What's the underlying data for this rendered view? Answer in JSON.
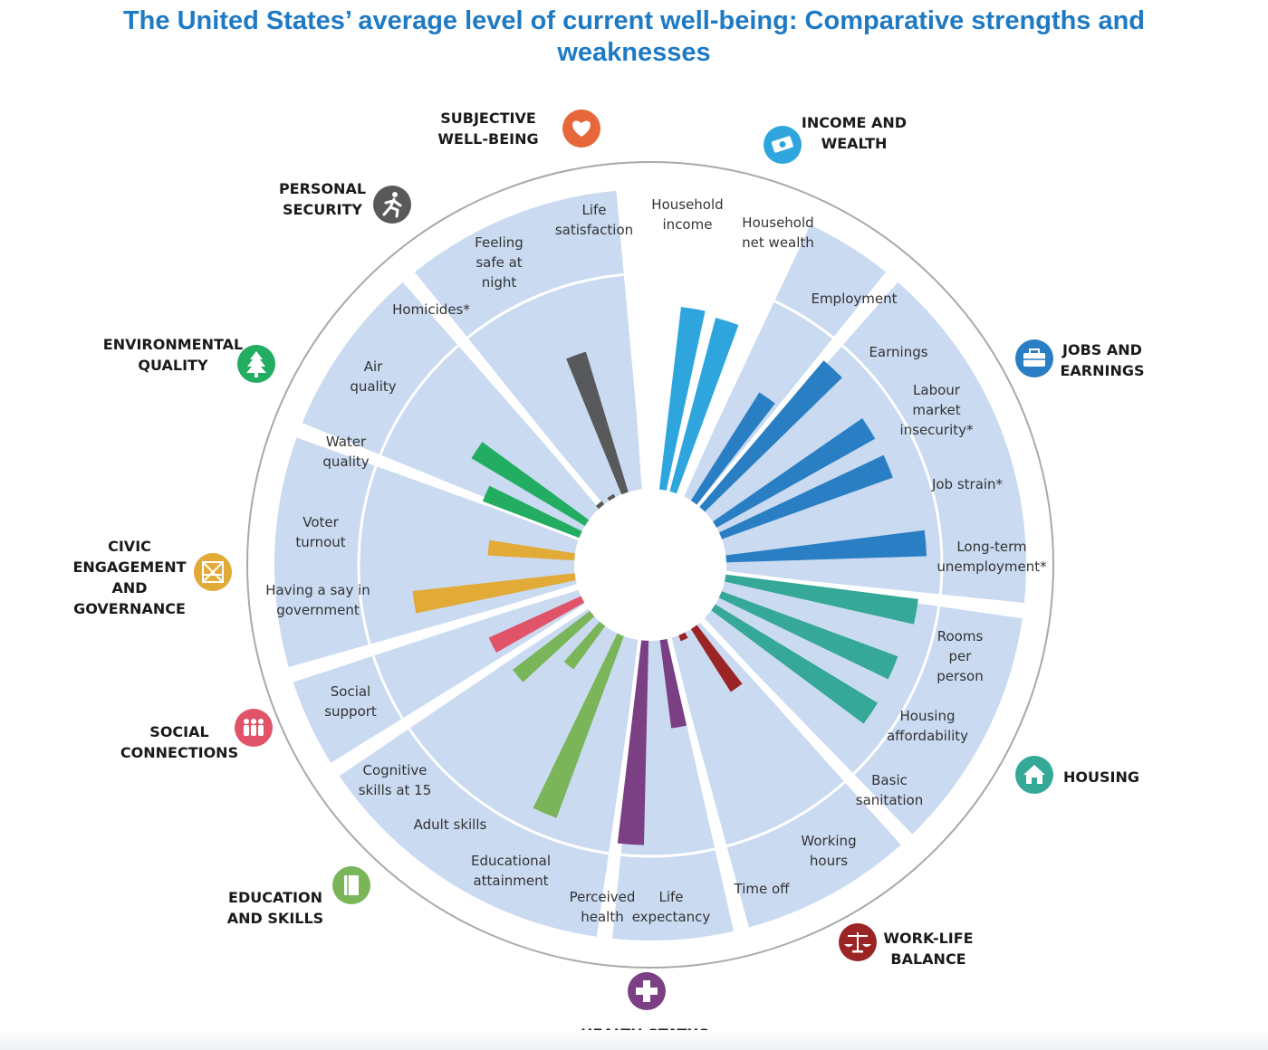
{
  "title_line1": "The United States’ average level of current well-being: Comparative strengths and",
  "title_line2": "weaknesses",
  "chart_data": {
    "type": "radial-bar",
    "title": "The United States’ average level of current well-being: Comparative strengths and weaknesses",
    "value_scale": [
      0,
      10
    ],
    "dimensions": [
      {
        "name": "SUBJECTIVE WELL-BEING",
        "lines": [
          "SUBJECTIVE",
          "WELL-BEING"
        ],
        "color": "#58595b",
        "icon": "heart-icon",
        "icon_color": "#e8673a",
        "indicators": [
          {
            "label": [
              "Life",
              "satisfaction"
            ],
            "value": 7.1
          }
        ]
      },
      {
        "name": "INCOME AND WEALTH",
        "lines": [
          "INCOME AND",
          "WEALTH"
        ],
        "color": "#2ea6dd",
        "icon": "money-icon",
        "icon_color": "#2ea6dd",
        "indicators": [
          {
            "label": [
              "Household",
              "income"
            ],
            "value": 8.9
          },
          {
            "label": [
              "Household",
              "net wealth"
            ],
            "value": 8.7
          }
        ]
      },
      {
        "name": "JOBS AND EARNINGS",
        "lines": [
          "JOBS AND",
          "EARNINGS"
        ],
        "color": "#2a7fc4",
        "icon": "briefcase-icon",
        "icon_color": "#2a7fc4",
        "indicators": [
          {
            "label": [
              "Employment"
            ],
            "value": 6.2
          },
          {
            "label": [
              "Earnings"
            ],
            "value": 9.3
          },
          {
            "label": [
              "Labour",
              "market",
              "insecurity*"
            ],
            "value": 8.8
          },
          {
            "label": [
              "Job strain*"
            ],
            "value": 8.8
          },
          {
            "label": [
              "Long-term",
              "unemployment*"
            ],
            "value": 9.7
          }
        ]
      },
      {
        "name": "HOUSING",
        "lines": [
          "HOUSING"
        ],
        "color": "#35a897",
        "icon": "house-icon",
        "icon_color": "#35a897",
        "indicators": [
          {
            "label": [
              "Rooms",
              "per",
              "person"
            ],
            "value": 9.4
          },
          {
            "label": [
              "Housing",
              "affordability"
            ],
            "value": 9.1
          },
          {
            "label": [
              "Basic",
              "sanitation"
            ],
            "value": 9.2
          }
        ]
      },
      {
        "name": "WORK-LIFE BALANCE",
        "lines": [
          "WORK-LIFE",
          "BALANCE"
        ],
        "color": "#9b2525",
        "icon": "scales-icon",
        "icon_color": "#9b2525",
        "indicators": [
          {
            "label": [
              "Working",
              "hours"
            ],
            "value": 3.6
          },
          {
            "label": [
              "Time off"
            ],
            "value": 0.3
          }
        ]
      },
      {
        "name": "HEALTH STATUS",
        "lines": [
          "HEALTH STATUS"
        ],
        "color": "#7b3f83",
        "icon": "cross-icon",
        "icon_color": "#7b3f83",
        "indicators": [
          {
            "label": [
              "Life",
              "expectancy"
            ],
            "value": 4.3
          },
          {
            "label": [
              "Perceived",
              "health"
            ],
            "value": 9.9
          }
        ]
      },
      {
        "name": "EDUCATION AND SKILLS",
        "lines": [
          "EDUCATION",
          "AND SKILLS"
        ],
        "color": "#7ab55a",
        "icon": "book-icon",
        "icon_color": "#7ab55a",
        "indicators": [
          {
            "label": [
              "Educational",
              "attainment"
            ],
            "value": 9.4
          },
          {
            "label": [
              "Adult skills"
            ],
            "value": 2.6
          },
          {
            "label": [
              "Cognitive",
              "skills at 15"
            ],
            "value": 4.7
          }
        ]
      },
      {
        "name": "SOCIAL CONNECTIONS",
        "lines": [
          "SOCIAL",
          "CONNECTIONS"
        ],
        "color": "#e05369",
        "icon": "people-icon",
        "icon_color": "#e05369",
        "indicators": [
          {
            "label": [
              "Social",
              "support"
            ],
            "value": 4.9
          }
        ]
      },
      {
        "name": "CIVIC ENGAGEMENT AND GOVERNANCE",
        "lines": [
          "CIVIC",
          "ENGAGEMENT",
          "AND",
          "GOVERNANCE"
        ],
        "color": "#e2aa36",
        "icon": "ballot-icon",
        "icon_color": "#e2aa36",
        "indicators": [
          {
            "label": [
              "Having a say in",
              "government"
            ],
            "value": 7.9
          },
          {
            "label": [
              "Voter",
              "turnout"
            ],
            "value": 4.2
          }
        ]
      },
      {
        "name": "ENVIRONMENTAL QUALITY",
        "lines": [
          "ENVIRONMENTAL",
          "QUALITY"
        ],
        "color": "#23ad62",
        "icon": "tree-icon",
        "icon_color": "#23ad62",
        "indicators": [
          {
            "label": [
              "Water",
              "quality"
            ],
            "value": 5.0
          },
          {
            "label": [
              "Air",
              "quality"
            ],
            "value": 6.4
          }
        ]
      },
      {
        "name": "PERSONAL SECURITY",
        "lines": [
          "PERSONAL",
          "SECURITY"
        ],
        "color": "#58595b",
        "icon": "runner-icon",
        "icon_color": "#58595b",
        "indicators": [
          {
            "label": [
              "Homicides*"
            ],
            "value": 0.2
          },
          {
            "label": [
              "Feeling",
              "safe at",
              "night"
            ],
            "value": 0.1
          }
        ]
      }
    ]
  }
}
